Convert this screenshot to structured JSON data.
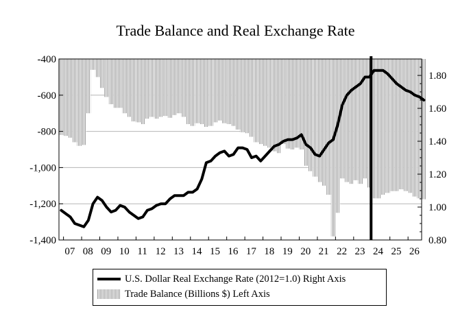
{
  "chart_data": {
    "type": "bar+line",
    "title": "Trade Balance and Real Exchange Rate",
    "x_tick_labels": [
      "07",
      "08",
      "09",
      "10",
      "11",
      "12",
      "13",
      "14",
      "15",
      "16",
      "17",
      "18",
      "19",
      "20",
      "21",
      "22",
      "23",
      "24",
      "25",
      "26"
    ],
    "left_axis": {
      "ylim": [
        -1400,
        -400
      ],
      "ticks": [
        -400,
        -600,
        -800,
        -1000,
        -1200,
        -1400
      ],
      "tick_labels": [
        "-400",
        "-600",
        "-800",
        "-1,000",
        "-1,200",
        "-1,400"
      ]
    },
    "right_axis": {
      "ylim": [
        0.8,
        1.9
      ],
      "ticks": [
        1.8,
        1.6,
        1.4,
        1.2,
        1.0,
        0.8
      ],
      "tick_labels": [
        "1.80",
        "1.60",
        "1.40",
        "1.20",
        "1.00",
        "0.80"
      ]
    },
    "gridlines": true,
    "vertical_marker": 2024.0,
    "x_start": 2006.75,
    "series": [
      {
        "name": "U.S. Dollar Real Exchange Rate (2012=1.0) Right Axis",
        "type": "line",
        "axis": "right",
        "color": "#000000",
        "x": [
          2006.75,
          2007.0,
          2007.25,
          2007.5,
          2007.75,
          2008.0,
          2008.25,
          2008.5,
          2008.75,
          2009.0,
          2009.25,
          2009.5,
          2009.75,
          2010.0,
          2010.25,
          2010.5,
          2010.75,
          2011.0,
          2011.25,
          2011.5,
          2011.75,
          2012.0,
          2012.25,
          2012.5,
          2012.75,
          2013.0,
          2013.25,
          2013.5,
          2013.75,
          2014.0,
          2014.25,
          2014.5,
          2014.75,
          2015.0,
          2015.25,
          2015.5,
          2015.75,
          2016.0,
          2016.25,
          2016.5,
          2016.75,
          2017.0,
          2017.25,
          2017.5,
          2017.75,
          2018.0,
          2018.25,
          2018.5,
          2018.75,
          2019.0,
          2019.25,
          2019.5,
          2019.75,
          2020.0,
          2020.25,
          2020.5,
          2020.75,
          2021.0,
          2021.25,
          2021.5,
          2021.75,
          2022.0,
          2022.25,
          2022.5,
          2022.75,
          2023.0,
          2023.25,
          2023.5,
          2023.75,
          2024.0,
          2024.25,
          2024.5,
          2024.75,
          2025.0,
          2025.25,
          2025.5,
          2025.75,
          2026.0,
          2026.25,
          2026.5,
          2026.75
        ],
        "values": [
          0.98,
          0.96,
          0.94,
          0.9,
          0.89,
          0.88,
          0.92,
          1.02,
          1.06,
          1.04,
          1.0,
          0.97,
          0.98,
          1.01,
          1.0,
          0.97,
          0.95,
          0.93,
          0.94,
          0.98,
          0.99,
          1.01,
          1.02,
          1.02,
          1.05,
          1.07,
          1.07,
          1.07,
          1.09,
          1.09,
          1.11,
          1.17,
          1.27,
          1.28,
          1.31,
          1.33,
          1.34,
          1.31,
          1.32,
          1.36,
          1.36,
          1.35,
          1.3,
          1.31,
          1.28,
          1.31,
          1.34,
          1.37,
          1.38,
          1.4,
          1.41,
          1.41,
          1.42,
          1.44,
          1.38,
          1.36,
          1.32,
          1.31,
          1.35,
          1.39,
          1.41,
          1.5,
          1.62,
          1.68,
          1.71,
          1.73,
          1.75,
          1.79,
          1.79,
          1.83,
          1.83,
          1.83,
          1.81,
          1.78,
          1.75,
          1.73,
          1.71,
          1.7,
          1.68,
          1.67,
          1.65
        ]
      },
      {
        "name": "Trade Balance (Billions $) Left Axis",
        "type": "bar",
        "axis": "left",
        "color": "#9a9a9a",
        "x": [
          2006.75,
          2007.0,
          2007.25,
          2007.5,
          2007.75,
          2008.0,
          2008.25,
          2008.5,
          2008.75,
          2009.0,
          2009.25,
          2009.5,
          2009.75,
          2010.0,
          2010.25,
          2010.5,
          2010.75,
          2011.0,
          2011.25,
          2011.5,
          2011.75,
          2012.0,
          2012.25,
          2012.5,
          2012.75,
          2013.0,
          2013.25,
          2013.5,
          2013.75,
          2014.0,
          2014.25,
          2014.5,
          2014.75,
          2015.0,
          2015.25,
          2015.5,
          2015.75,
          2016.0,
          2016.25,
          2016.5,
          2016.75,
          2017.0,
          2017.25,
          2017.5,
          2017.75,
          2018.0,
          2018.25,
          2018.5,
          2018.75,
          2019.0,
          2019.25,
          2019.5,
          2019.75,
          2020.0,
          2020.25,
          2020.5,
          2020.75,
          2021.0,
          2021.25,
          2021.5,
          2021.75,
          2022.0,
          2022.25,
          2022.5,
          2022.75,
          2023.0,
          2023.25,
          2023.5,
          2023.75,
          2024.0,
          2024.25,
          2024.5,
          2024.75,
          2025.0,
          2025.25,
          2025.5,
          2025.75,
          2026.0,
          2026.25,
          2026.5,
          2026.75
        ],
        "values": [
          -820,
          -825,
          -835,
          -860,
          -880,
          -875,
          -700,
          -460,
          -500,
          -560,
          -610,
          -650,
          -670,
          -670,
          -700,
          -720,
          -745,
          -750,
          -760,
          -730,
          -720,
          -730,
          -720,
          -715,
          -725,
          -710,
          -700,
          -720,
          -760,
          -770,
          -755,
          -760,
          -775,
          -770,
          -750,
          -740,
          -755,
          -760,
          -770,
          -790,
          -805,
          -810,
          -830,
          -860,
          -870,
          -880,
          -890,
          -910,
          -920,
          -870,
          -895,
          -900,
          -890,
          -900,
          -990,
          -1020,
          -1050,
          -1080,
          -1100,
          -1150,
          -1380,
          -1250,
          -1060,
          -1080,
          -1090,
          -1070,
          -1090,
          -1060,
          -1110,
          -1170,
          -1170,
          -1150,
          -1140,
          -1130,
          -1130,
          -1120,
          -1130,
          -1140,
          -1160,
          -1170,
          -1175
        ]
      }
    ],
    "legend": {
      "placement": "bottom-center",
      "entries": [
        "U.S. Dollar Real Exchange Rate (2012=1.0) Right Axis",
        "Trade Balance (Billions $) Left Axis"
      ]
    }
  }
}
